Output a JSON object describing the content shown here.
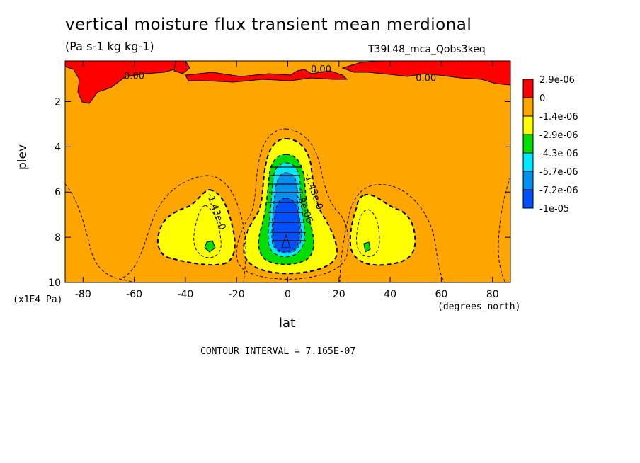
{
  "chart_data": {
    "type": "heatmap",
    "title": "vertical moisture flux transient mean merdional",
    "units": "(Pa s-1 kg kg-1)",
    "run_id": "T39L48_mca_Qobs3keq",
    "xlabel": "lat",
    "ylabel": "plev",
    "x_unit": "(degrees_north)",
    "y_unit": "(x1E4 Pa)",
    "xlim": [
      -87,
      87
    ],
    "ylim": [
      10,
      0.2
    ],
    "x_ticks": [
      -80,
      -60,
      -40,
      -20,
      0,
      20,
      40,
      60,
      80
    ],
    "x_tick_labels": [
      "-80",
      "-60",
      "-40",
      "-20",
      "0",
      "20",
      "40",
      "60",
      "80"
    ],
    "y_ticks": [
      2,
      4,
      6,
      8,
      10
    ],
    "y_tick_labels": [
      "2",
      "4",
      "6",
      "8",
      "10"
    ],
    "contour_interval_label": "CONTOUR INTERVAL = 7.165E-07",
    "contour_labels": [
      {
        "text": "0.00",
        "x": -60,
        "y": 1.0
      },
      {
        "text": "0.00",
        "x": 13,
        "y": 0.7
      },
      {
        "text": "0.00",
        "x": 54,
        "y": 1.1
      },
      {
        "text": "-1.43e-0",
        "x": -29,
        "y": 6.9
      },
      {
        "text": "-1.43e-0",
        "x": 9,
        "y": 6.0
      },
      {
        "text": "-7.8e-06",
        "x": 5,
        "y": 6.6
      }
    ],
    "legend": {
      "placement": "right",
      "levels": [
        "2.9e-06",
        "0",
        "-1.4e-06",
        "-2.9e-06",
        "-4.3e-06",
        "-5.7e-06",
        "-7.2e-06",
        "-1e-05"
      ],
      "colors": [
        "#ff0000",
        "#ffa500",
        "#ffff00",
        "#00dd00",
        "#00e8ff",
        "#0090f0",
        "#0050ff"
      ]
    },
    "features": {
      "equatorial_min": {
        "lat": 0,
        "plev_range": [
          4.3,
          9.0
        ],
        "value_min": -1e-05
      },
      "subtropical_min_south": {
        "lat": -31,
        "plev": 8.3,
        "value": -3.5e-06
      },
      "subtropical_min_north": {
        "lat": 31,
        "plev": 8.4,
        "value": -3.2e-06
      },
      "upper_positive_bands": [
        {
          "lat_range": [
            -80,
            -48
          ],
          "plev_range": [
            0.2,
            2.1
          ],
          "value_max": 2.9e-06
        },
        {
          "lat_range": [
            -50,
            -30
          ],
          "plev_range": [
            0.2,
            0.9
          ],
          "value_max": 2.9e-06
        },
        {
          "lat_range": [
            12,
            38
          ],
          "plev_range": [
            0.2,
            0.8
          ],
          "value_max": 2.9e-06
        },
        {
          "lat_range": [
            45,
            87
          ],
          "plev_range": [
            0.2,
            1.2
          ],
          "value_max": 2.9e-06
        }
      ]
    }
  }
}
